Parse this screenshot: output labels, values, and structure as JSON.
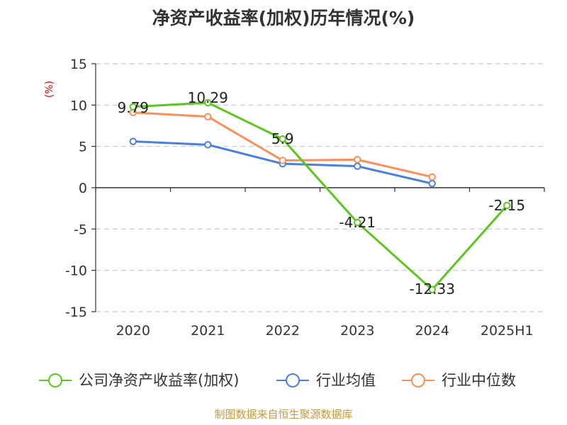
{
  "title": "净资产收益率(加权)历年情况(%)",
  "source": "制图数据来自恒生聚源数据库",
  "chart_data": {
    "type": "line",
    "title": "净资产收益率(加权)历年情况(%)",
    "ylabel": "(%)",
    "categories": [
      "2020",
      "2021",
      "2022",
      "2023",
      "2024",
      "2025H1"
    ],
    "ylim": [
      -15,
      15
    ],
    "yticks": [
      15,
      10,
      5,
      0,
      -5,
      -10,
      -15
    ],
    "grid": "horizontal-dashed",
    "legend_position": "bottom",
    "series": [
      {
        "name": "公司净资产收益率(加权)",
        "color": "#5cc51e",
        "values": [
          9.79,
          10.29,
          5.9,
          -4.21,
          -12.33,
          -2.15
        ],
        "labels": [
          "9.79",
          "10.29",
          "5.9",
          "-4.21",
          "-12.33",
          "-2.15"
        ]
      },
      {
        "name": "行业均值",
        "color": "#4a7fdc",
        "values": [
          5.6,
          5.2,
          2.9,
          2.6,
          0.5,
          null
        ]
      },
      {
        "name": "行业中位数",
        "color": "#f98f5a",
        "values": [
          9.1,
          8.6,
          3.3,
          3.4,
          1.3,
          null
        ]
      }
    ]
  }
}
